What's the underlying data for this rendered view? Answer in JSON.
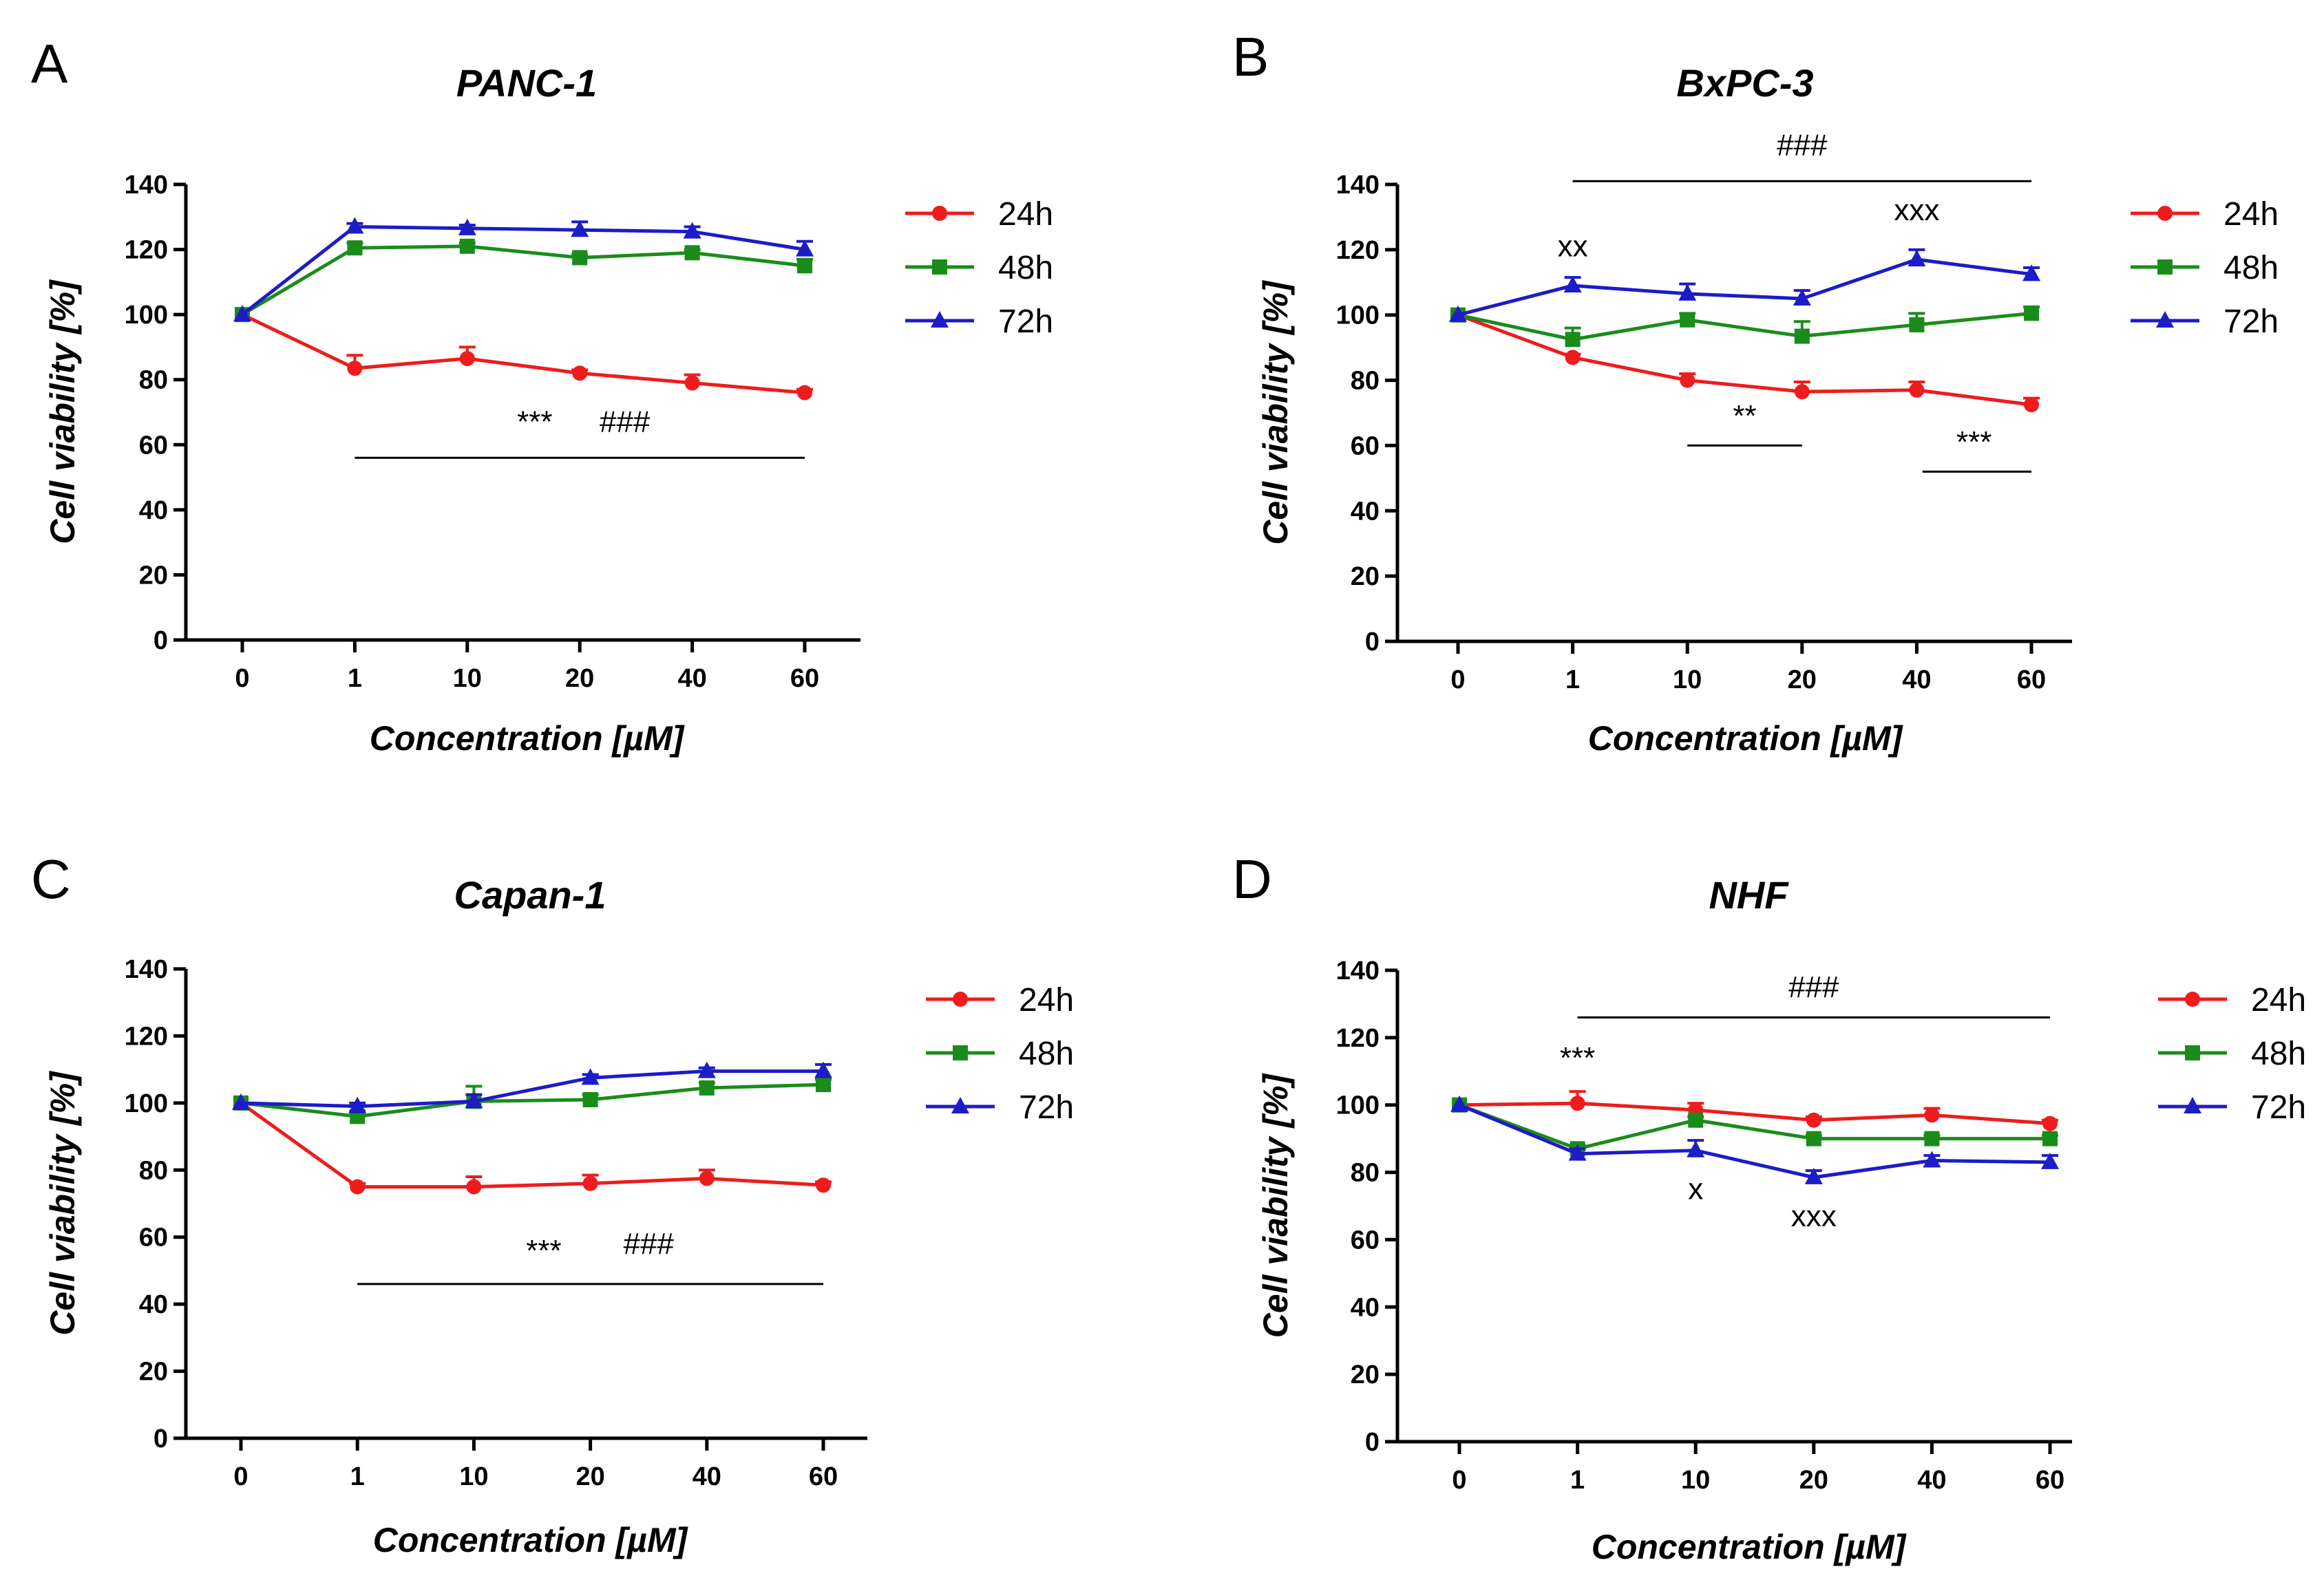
{
  "chart_data": [
    {
      "type": "line",
      "panel": "A",
      "title": "PANC-1",
      "xlabel": "Concentration [µM]",
      "ylabel": "Cell viability [%]",
      "categories": [
        "0",
        "1",
        "10",
        "20",
        "40",
        "60"
      ],
      "ylim": [
        0,
        140
      ],
      "yticks": [
        0,
        20,
        40,
        60,
        80,
        100,
        120,
        140
      ],
      "legend_position": "right",
      "series": [
        {
          "name": "24h",
          "color": "#ee1c1c",
          "marker": "circle",
          "values": [
            100,
            83.5,
            86.5,
            82,
            79,
            76
          ],
          "errors": [
            0,
            4,
            3.5,
            1,
            2.5,
            1
          ]
        },
        {
          "name": "48h",
          "color": "#1a8c1a",
          "marker": "square",
          "values": [
            100,
            120.5,
            121,
            117.5,
            119,
            115
          ],
          "errors": [
            0,
            1.5,
            1,
            1,
            1,
            2
          ]
        },
        {
          "name": "72h",
          "color": "#1c1cc8",
          "marker": "triangle",
          "values": [
            100,
            127,
            126.5,
            126,
            125.5,
            120
          ],
          "errors": [
            0,
            1,
            1,
            2.5,
            1.5,
            2.5
          ]
        }
      ],
      "annotations": [
        {
          "text": "***",
          "x": 2.6,
          "y": 64
        },
        {
          "text": "###",
          "x": 3.4,
          "y": 64
        }
      ],
      "sig_lines": [
        {
          "from": 1,
          "to": 5,
          "y": 56
        }
      ]
    },
    {
      "type": "line",
      "panel": "B",
      "title": "BxPC-3",
      "xlabel": "Concentration [µM]",
      "ylabel": "Cell viability [%]",
      "categories": [
        "0",
        "1",
        "10",
        "20",
        "40",
        "60"
      ],
      "ylim": [
        0,
        140
      ],
      "yticks": [
        0,
        20,
        40,
        60,
        80,
        100,
        120,
        140
      ],
      "legend_position": "right",
      "series": [
        {
          "name": "24h",
          "color": "#ee1c1c",
          "marker": "circle",
          "values": [
            100,
            87,
            80,
            76.5,
            77,
            72.5
          ],
          "errors": [
            0,
            1,
            2,
            3,
            2.5,
            2
          ]
        },
        {
          "name": "48h",
          "color": "#1a8c1a",
          "marker": "square",
          "values": [
            100,
            92.5,
            98.5,
            93.5,
            97,
            100.5
          ],
          "errors": [
            0,
            3.5,
            2,
            4.5,
            3.5,
            2
          ]
        },
        {
          "name": "72h",
          "color": "#1c1cc8",
          "marker": "triangle",
          "values": [
            100,
            109,
            106.5,
            105,
            117,
            112.5
          ],
          "errors": [
            0,
            2.5,
            3,
            2.5,
            3,
            2
          ]
        }
      ],
      "annotations": [
        {
          "text": "###",
          "x": 3,
          "y": 149
        },
        {
          "text": "xx",
          "x": 1,
          "y": 118
        },
        {
          "text": "xxx",
          "x": 4,
          "y": 129
        },
        {
          "text": "**",
          "x": 2.5,
          "y": 66
        },
        {
          "text": "***",
          "x": 4.5,
          "y": 58
        }
      ],
      "sig_lines": [
        {
          "from": 1,
          "to": 5,
          "y": 141
        },
        {
          "from": 2,
          "to": 3,
          "y": 60
        },
        {
          "from": 4.05,
          "to": 5,
          "y": 52
        }
      ]
    },
    {
      "type": "line",
      "panel": "C",
      "title": "Capan-1",
      "xlabel": "Concentration [µM]",
      "ylabel": "Cell viability [%]",
      "categories": [
        "0",
        "1",
        "10",
        "20",
        "40",
        "60"
      ],
      "ylim": [
        0,
        140
      ],
      "yticks": [
        0,
        20,
        40,
        60,
        80,
        100,
        120,
        140
      ],
      "legend_position": "right",
      "series": [
        {
          "name": "24h",
          "color": "#ee1c1c",
          "marker": "circle",
          "values": [
            100,
            75,
            75,
            76,
            77.5,
            75.5
          ],
          "errors": [
            0,
            1,
            3,
            2.5,
            2.5,
            1
          ]
        },
        {
          "name": "48h",
          "color": "#1a8c1a",
          "marker": "square",
          "values": [
            100,
            96,
            100.5,
            101,
            104.5,
            105.5
          ],
          "errors": [
            0,
            1.5,
            4.5,
            1.5,
            1.5,
            1.5
          ]
        },
        {
          "name": "72h",
          "color": "#1c1cc8",
          "marker": "triangle",
          "values": [
            100,
            99,
            100.5,
            107.5,
            109.5,
            109.5
          ],
          "errors": [
            0,
            1,
            2,
            1,
            1,
            2
          ]
        }
      ],
      "annotations": [
        {
          "text": "***",
          "x": 2.6,
          "y": 53
        },
        {
          "text": "###",
          "x": 3.5,
          "y": 55
        }
      ],
      "sig_lines": [
        {
          "from": 1,
          "to": 5,
          "y": 46
        }
      ]
    },
    {
      "type": "line",
      "panel": "D",
      "title": "NHF",
      "xlabel": "Concentration [µM]",
      "ylabel": "Cell viability [%]",
      "categories": [
        "0",
        "1",
        "10",
        "20",
        "40",
        "60"
      ],
      "ylim": [
        0,
        140
      ],
      "yticks": [
        0,
        20,
        40,
        60,
        80,
        100,
        120,
        140
      ],
      "legend_position": "right",
      "series": [
        {
          "name": "24h",
          "color": "#ee1c1c",
          "marker": "circle",
          "values": [
            100,
            100.5,
            98.5,
            95.5,
            97,
            94.5
          ],
          "errors": [
            0,
            3.5,
            2,
            1,
            2,
            1
          ]
        },
        {
          "name": "48h",
          "color": "#1a8c1a",
          "marker": "square",
          "values": [
            100,
            87,
            95.5,
            90,
            90,
            90
          ],
          "errors": [
            0,
            1,
            1,
            1,
            1,
            1
          ]
        },
        {
          "name": "72h",
          "color": "#1c1cc8",
          "marker": "triangle",
          "values": [
            100,
            85.5,
            86.5,
            78.5,
            83.5,
            83
          ],
          "errors": [
            0,
            1.5,
            3,
            2,
            1.5,
            2
          ]
        }
      ],
      "annotations": [
        {
          "text": "###",
          "x": 3,
          "y": 132
        },
        {
          "text": "***",
          "x": 1,
          "y": 111
        },
        {
          "text": "x",
          "x": 2,
          "y": 72
        },
        {
          "text": "xxx",
          "x": 3,
          "y": 64
        }
      ],
      "sig_lines": [
        {
          "from": 1,
          "to": 5,
          "y": 126
        }
      ]
    }
  ]
}
